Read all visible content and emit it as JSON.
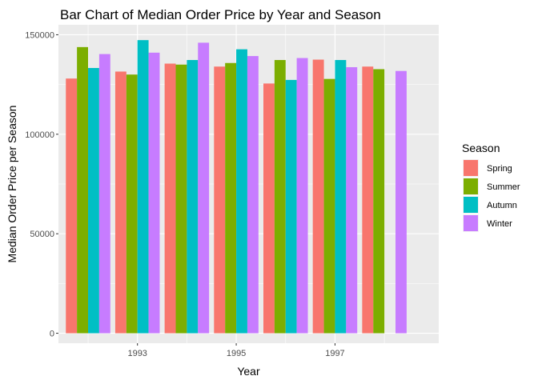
{
  "chart_data": {
    "type": "bar",
    "title": "Bar Chart of Median Order Price by Year and Season",
    "xlabel": "Year",
    "ylabel": "Median Order Price per Season",
    "categories": [
      1992,
      1993,
      1994,
      1995,
      1996,
      1997,
      1998
    ],
    "x_ticks": [
      1993,
      1995,
      1997
    ],
    "y_ticks": [
      0,
      50000,
      100000,
      150000
    ],
    "y_tick_labels": [
      "0",
      "50000",
      "100000",
      "150000"
    ],
    "ylim": [
      -5000,
      155000
    ],
    "xlim": [
      1991.4,
      1999.1
    ],
    "grid": true,
    "legend": {
      "title": "Season",
      "position": "right"
    },
    "series": [
      {
        "name": "Spring",
        "color": "#F8766D",
        "values": [
          128000,
          131500,
          135500,
          134000,
          125500,
          137500,
          134000
        ]
      },
      {
        "name": "Summer",
        "color": "#7CAE00",
        "values": [
          143800,
          130000,
          135000,
          135800,
          137300,
          127800,
          132700
        ]
      },
      {
        "name": "Autumn",
        "color": "#00BFC4",
        "values": [
          133300,
          147300,
          137300,
          142700,
          127300,
          137300,
          null
        ]
      },
      {
        "name": "Winter",
        "color": "#C77CFF",
        "values": [
          140300,
          141000,
          146000,
          139300,
          138300,
          133700,
          131800
        ]
      }
    ]
  }
}
